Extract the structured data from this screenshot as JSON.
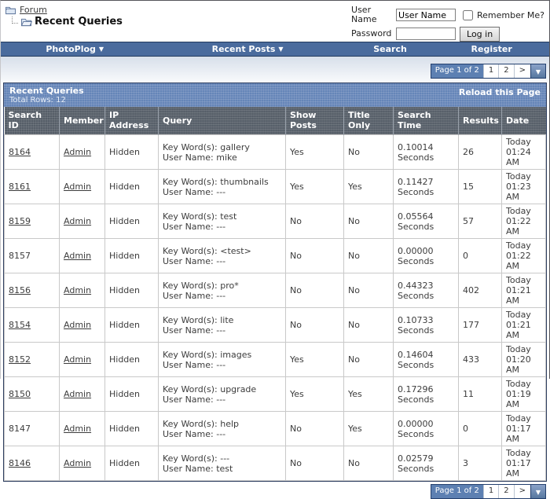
{
  "breadcrumb": {
    "root": "Forum",
    "current": "Recent Queries"
  },
  "login": {
    "username_label": "User Name",
    "username_value": "User Name",
    "remember_label": "Remember Me?",
    "password_label": "Password",
    "login_button": "Log in"
  },
  "navbar": {
    "items": [
      {
        "label": "PhotoPlog",
        "dropdown": true
      },
      {
        "label": "Recent Posts",
        "dropdown": true
      },
      {
        "label": "Search",
        "dropdown": false
      },
      {
        "label": "Register",
        "dropdown": false
      }
    ]
  },
  "pagination": {
    "status": "Page 1 of 2",
    "pages": [
      "1",
      "2"
    ],
    "next": ">"
  },
  "panel": {
    "title": "Recent Queries",
    "subtitle": "Total Rows: 12",
    "reload_link": "Reload this Page"
  },
  "table": {
    "columns": [
      "Search ID",
      "Member",
      "IP Address",
      "Query",
      "Show Posts",
      "Title Only",
      "Search Time",
      "Results",
      "Date"
    ],
    "rows": [
      {
        "search_id": "8164",
        "id_is_link": true,
        "member": "Admin",
        "ip": "Hidden",
        "query": [
          "Key Word(s): gallery",
          "User Name: mike"
        ],
        "show_posts": "Yes",
        "title_only": "No",
        "search_time": [
          "0.10014",
          "Seconds"
        ],
        "results": "26",
        "date": [
          "Today",
          "01:24 AM"
        ]
      },
      {
        "search_id": "8161",
        "id_is_link": true,
        "member": "Admin",
        "ip": "Hidden",
        "query": [
          "Key Word(s): thumbnails",
          "User Name: ---"
        ],
        "show_posts": "Yes",
        "title_only": "Yes",
        "search_time": [
          "0.11427",
          "Seconds"
        ],
        "results": "15",
        "date": [
          "Today",
          "01:23 AM"
        ]
      },
      {
        "search_id": "8159",
        "id_is_link": true,
        "member": "Admin",
        "ip": "Hidden",
        "query": [
          "Key Word(s): test",
          "User Name: ---"
        ],
        "show_posts": "No",
        "title_only": "No",
        "search_time": [
          "0.05564",
          "Seconds"
        ],
        "results": "57",
        "date": [
          "Today",
          "01:22 AM"
        ]
      },
      {
        "search_id": "8157",
        "id_is_link": false,
        "member": "Admin",
        "ip": "Hidden",
        "query": [
          "Key Word(s): <test>",
          "User Name: ---"
        ],
        "show_posts": "No",
        "title_only": "No",
        "search_time": [
          "0.00000",
          "Seconds"
        ],
        "results": "0",
        "date": [
          "Today",
          "01:22 AM"
        ]
      },
      {
        "search_id": "8156",
        "id_is_link": true,
        "member": "Admin",
        "ip": "Hidden",
        "query": [
          "Key Word(s): pro*",
          "User Name: ---"
        ],
        "show_posts": "No",
        "title_only": "No",
        "search_time": [
          "0.44323",
          "Seconds"
        ],
        "results": "402",
        "date": [
          "Today",
          "01:21 AM"
        ]
      },
      {
        "search_id": "8154",
        "id_is_link": true,
        "member": "Admin",
        "ip": "Hidden",
        "query": [
          "Key Word(s): lite",
          "User Name: ---"
        ],
        "show_posts": "No",
        "title_only": "No",
        "search_time": [
          "0.10733",
          "Seconds"
        ],
        "results": "177",
        "date": [
          "Today",
          "01:21 AM"
        ]
      },
      {
        "search_id": "8152",
        "id_is_link": true,
        "member": "Admin",
        "ip": "Hidden",
        "query": [
          "Key Word(s): images",
          "User Name: ---"
        ],
        "show_posts": "Yes",
        "title_only": "No",
        "search_time": [
          "0.14604",
          "Seconds"
        ],
        "results": "433",
        "date": [
          "Today",
          "01:20 AM"
        ]
      },
      {
        "search_id": "8150",
        "id_is_link": true,
        "member": "Admin",
        "ip": "Hidden",
        "query": [
          "Key Word(s): upgrade",
          "User Name: ---"
        ],
        "show_posts": "Yes",
        "title_only": "Yes",
        "search_time": [
          "0.17296",
          "Seconds"
        ],
        "results": "11",
        "date": [
          "Today",
          "01:19 AM"
        ]
      },
      {
        "search_id": "8147",
        "id_is_link": false,
        "member": "Admin",
        "ip": "Hidden",
        "query": [
          "Key Word(s): help",
          "User Name: ---"
        ],
        "show_posts": "No",
        "title_only": "Yes",
        "search_time": [
          "0.00000",
          "Seconds"
        ],
        "results": "0",
        "date": [
          "Today",
          "01:17 AM"
        ]
      },
      {
        "search_id": "8146",
        "id_is_link": true,
        "member": "Admin",
        "ip": "Hidden",
        "query": [
          "Key Word(s): ---",
          "User Name: test"
        ],
        "show_posts": "No",
        "title_only": "No",
        "search_time": [
          "0.02579",
          "Seconds"
        ],
        "results": "3",
        "date": [
          "Today",
          "01:17 AM"
        ]
      }
    ]
  },
  "icons": {
    "dropdown_arrow": "▼"
  },
  "colors": {
    "navbar": "#4a6b9d",
    "title_bar": "#6585b8",
    "column_header": "#565e68",
    "link": "#3d3d3d",
    "pager_active_bg": "#5d80b2",
    "panel_border": "#2e3e60"
  }
}
